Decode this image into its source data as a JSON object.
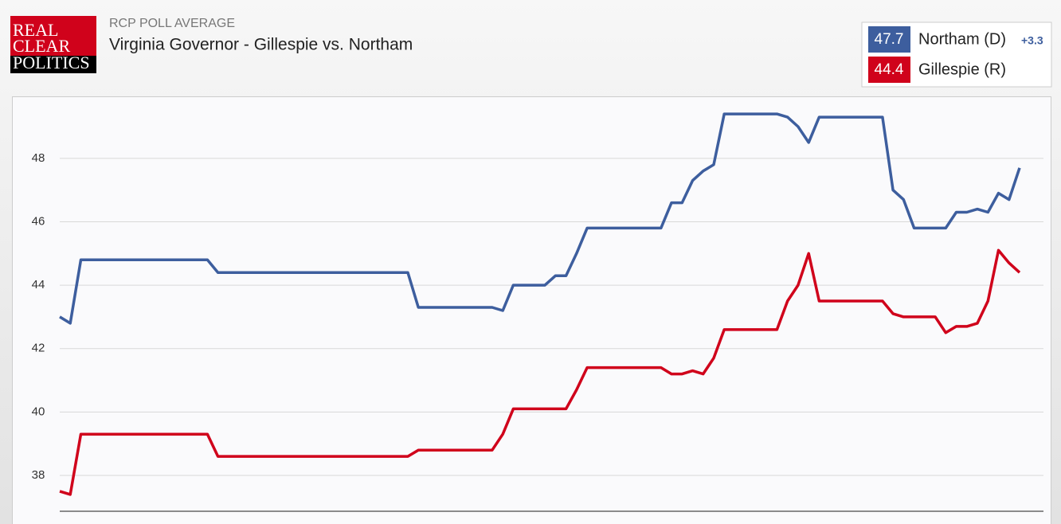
{
  "logo": [
    "REAL",
    "CLEAR",
    "POLITICS"
  ],
  "chart_data": {
    "type": "line",
    "subtitle": "RCP POLL AVERAGE",
    "title": "Virginia Governor - Gillespie vs. Northam",
    "categories": [
      null,
      null,
      null,
      null,
      null,
      null,
      null,
      null,
      null,
      null,
      null,
      null,
      null,
      null,
      null,
      null,
      null,
      null,
      null,
      null,
      null,
      null,
      null,
      null,
      null,
      null,
      null,
      null,
      null,
      null,
      null,
      null,
      null,
      null,
      null,
      null,
      null,
      null,
      null,
      null,
      null,
      null,
      null,
      null,
      null,
      null,
      null,
      null,
      null,
      null,
      null,
      null,
      null,
      null,
      null,
      null,
      null,
      null,
      null,
      null,
      null,
      null,
      null,
      null,
      null,
      null,
      null,
      null,
      null,
      null,
      null,
      null,
      null,
      null,
      null,
      null,
      null,
      null,
      null,
      null,
      null,
      null,
      null,
      null,
      null,
      null,
      null,
      null,
      null,
      null,
      null,
      null
    ],
    "series": [
      {
        "name": "Northam (D)",
        "color": "#3d5e9e",
        "latest": 47.7,
        "spread": {
          "value": 3.3,
          "label": "+3.3"
        },
        "values": [
          43.0,
          42.8,
          44.8,
          44.8,
          44.8,
          44.8,
          44.8,
          44.8,
          44.8,
          44.8,
          44.8,
          44.8,
          44.8,
          44.8,
          44.8,
          44.4,
          44.4,
          44.4,
          44.4,
          44.4,
          44.4,
          44.4,
          44.4,
          44.4,
          44.4,
          44.4,
          44.4,
          44.4,
          44.4,
          44.4,
          44.4,
          44.4,
          44.4,
          44.4,
          43.3,
          43.3,
          43.3,
          43.3,
          43.3,
          43.3,
          43.3,
          43.3,
          43.2,
          44.0,
          44.0,
          44.0,
          44.0,
          44.3,
          44.3,
          45.0,
          45.8,
          45.8,
          45.8,
          45.8,
          45.8,
          45.8,
          45.8,
          45.8,
          46.6,
          46.6,
          47.3,
          47.6,
          47.8,
          49.4,
          49.4,
          49.4,
          49.4,
          49.4,
          49.4,
          49.3,
          49.0,
          48.5,
          49.3,
          49.3,
          49.3,
          49.3,
          49.3,
          49.3,
          49.3,
          47.0,
          46.7,
          45.8,
          45.8,
          45.8,
          45.8,
          46.3,
          46.3,
          46.4,
          46.3,
          46.9,
          46.7,
          47.7
        ]
      },
      {
        "name": "Gillespie (R)",
        "color": "#d0021b",
        "latest": 44.4,
        "values": [
          37.5,
          37.4,
          39.3,
          39.3,
          39.3,
          39.3,
          39.3,
          39.3,
          39.3,
          39.3,
          39.3,
          39.3,
          39.3,
          39.3,
          39.3,
          38.6,
          38.6,
          38.6,
          38.6,
          38.6,
          38.6,
          38.6,
          38.6,
          38.6,
          38.6,
          38.6,
          38.6,
          38.6,
          38.6,
          38.6,
          38.6,
          38.6,
          38.6,
          38.6,
          38.8,
          38.8,
          38.8,
          38.8,
          38.8,
          38.8,
          38.8,
          38.8,
          39.3,
          40.1,
          40.1,
          40.1,
          40.1,
          40.1,
          40.1,
          40.7,
          41.4,
          41.4,
          41.4,
          41.4,
          41.4,
          41.4,
          41.4,
          41.4,
          41.2,
          41.2,
          41.3,
          41.2,
          41.7,
          42.6,
          42.6,
          42.6,
          42.6,
          42.6,
          42.6,
          43.5,
          44.0,
          45.0,
          43.5,
          43.5,
          43.5,
          43.5,
          43.5,
          43.5,
          43.5,
          43.1,
          43.0,
          43.0,
          43.0,
          43.0,
          42.5,
          42.7,
          42.7,
          42.8,
          43.5,
          45.1,
          44.7,
          44.4
        ]
      }
    ],
    "ylim": [
      36.87,
      49.93
    ],
    "yticks": [
      38,
      40,
      42,
      44,
      46,
      48
    ],
    "grid": true
  }
}
